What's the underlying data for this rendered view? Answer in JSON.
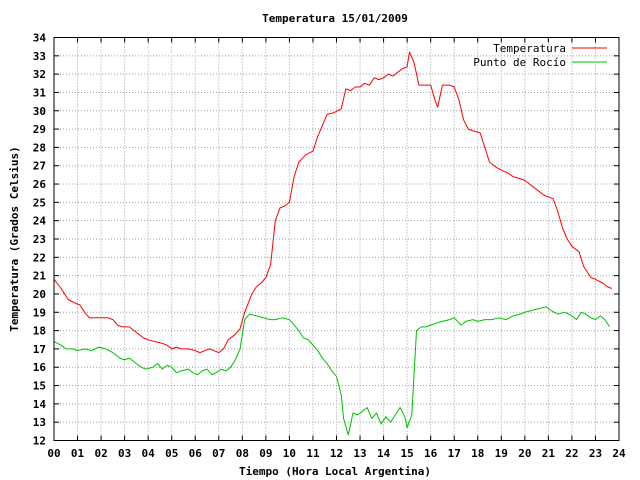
{
  "chart_data": {
    "type": "line",
    "title": "Temperatura 15/01/2009",
    "xlabel": "Tiempo (Hora Local Argentina)",
    "ylabel": "Temperatura (Grados Celsius)",
    "xlim": [
      0,
      24
    ],
    "ylim": [
      12,
      34
    ],
    "grid": true,
    "legend_position": "top-right",
    "x_ticks": [
      "00",
      "01",
      "02",
      "03",
      "04",
      "05",
      "06",
      "07",
      "08",
      "09",
      "10",
      "11",
      "12",
      "13",
      "14",
      "15",
      "16",
      "17",
      "18",
      "19",
      "20",
      "21",
      "22",
      "23",
      "24"
    ],
    "y_ticks": [
      12,
      13,
      14,
      15,
      16,
      17,
      18,
      19,
      20,
      21,
      22,
      23,
      24,
      25,
      26,
      27,
      28,
      29,
      30,
      31,
      32,
      33,
      34
    ],
    "series": [
      {
        "name": "Temperatura",
        "color": "#ff0000",
        "points": [
          [
            0.0,
            20.8
          ],
          [
            0.3,
            20.3
          ],
          [
            0.6,
            19.7
          ],
          [
            0.9,
            19.5
          ],
          [
            1.1,
            19.4
          ],
          [
            1.3,
            19.0
          ],
          [
            1.5,
            18.7
          ],
          [
            2.0,
            18.7
          ],
          [
            2.3,
            18.7
          ],
          [
            2.5,
            18.6
          ],
          [
            2.7,
            18.3
          ],
          [
            2.9,
            18.2
          ],
          [
            3.2,
            18.2
          ],
          [
            3.4,
            18.0
          ],
          [
            3.6,
            17.8
          ],
          [
            3.8,
            17.6
          ],
          [
            4.0,
            17.5
          ],
          [
            4.3,
            17.4
          ],
          [
            4.6,
            17.3
          ],
          [
            4.8,
            17.2
          ],
          [
            5.0,
            17.0
          ],
          [
            5.2,
            17.1
          ],
          [
            5.4,
            17.0
          ],
          [
            5.7,
            17.0
          ],
          [
            6.0,
            16.9
          ],
          [
            6.2,
            16.8
          ],
          [
            6.4,
            16.9
          ],
          [
            6.6,
            17.0
          ],
          [
            6.8,
            16.9
          ],
          [
            7.0,
            16.8
          ],
          [
            7.2,
            17.0
          ],
          [
            7.4,
            17.5
          ],
          [
            7.7,
            17.8
          ],
          [
            7.9,
            18.1
          ],
          [
            8.1,
            19.0
          ],
          [
            8.4,
            20.0
          ],
          [
            8.6,
            20.4
          ],
          [
            8.8,
            20.6
          ],
          [
            9.0,
            20.9
          ],
          [
            9.2,
            21.6
          ],
          [
            9.4,
            24.0
          ],
          [
            9.6,
            24.7
          ],
          [
            9.8,
            24.8
          ],
          [
            10.0,
            25.0
          ],
          [
            10.2,
            26.4
          ],
          [
            10.4,
            27.2
          ],
          [
            10.7,
            27.6
          ],
          [
            11.0,
            27.8
          ],
          [
            11.2,
            28.6
          ],
          [
            11.4,
            29.2
          ],
          [
            11.6,
            29.8
          ],
          [
            11.9,
            29.9
          ],
          [
            12.2,
            30.1
          ],
          [
            12.4,
            31.2
          ],
          [
            12.6,
            31.1
          ],
          [
            12.8,
            31.3
          ],
          [
            13.0,
            31.3
          ],
          [
            13.2,
            31.5
          ],
          [
            13.4,
            31.4
          ],
          [
            13.6,
            31.8
          ],
          [
            13.8,
            31.7
          ],
          [
            14.0,
            31.8
          ],
          [
            14.2,
            32.0
          ],
          [
            14.4,
            31.9
          ],
          [
            14.6,
            32.1
          ],
          [
            14.8,
            32.3
          ],
          [
            15.0,
            32.4
          ],
          [
            15.1,
            33.2
          ],
          [
            15.3,
            32.6
          ],
          [
            15.5,
            31.4
          ],
          [
            15.7,
            31.4
          ],
          [
            16.0,
            31.4
          ],
          [
            16.2,
            30.5
          ],
          [
            16.3,
            30.2
          ],
          [
            16.5,
            31.4
          ],
          [
            16.8,
            31.4
          ],
          [
            17.0,
            31.3
          ],
          [
            17.2,
            30.6
          ],
          [
            17.4,
            29.5
          ],
          [
            17.6,
            29.0
          ],
          [
            17.8,
            28.9
          ],
          [
            18.1,
            28.8
          ],
          [
            18.3,
            28.0
          ],
          [
            18.5,
            27.2
          ],
          [
            18.8,
            26.9
          ],
          [
            19.1,
            26.7
          ],
          [
            19.3,
            26.6
          ],
          [
            19.5,
            26.4
          ],
          [
            19.8,
            26.3
          ],
          [
            20.0,
            26.2
          ],
          [
            20.2,
            26.0
          ],
          [
            20.4,
            25.8
          ],
          [
            20.6,
            25.6
          ],
          [
            20.8,
            25.4
          ],
          [
            21.0,
            25.3
          ],
          [
            21.2,
            25.2
          ],
          [
            21.4,
            24.5
          ],
          [
            21.6,
            23.6
          ],
          [
            21.8,
            23.0
          ],
          [
            22.0,
            22.6
          ],
          [
            22.3,
            22.3
          ],
          [
            22.5,
            21.5
          ],
          [
            22.8,
            20.9
          ],
          [
            23.0,
            20.8
          ],
          [
            23.3,
            20.6
          ],
          [
            23.5,
            20.4
          ],
          [
            23.7,
            20.3
          ]
        ]
      },
      {
        "name": "Punto de Rocío",
        "color": "#00c000",
        "points": [
          [
            0.0,
            17.4
          ],
          [
            0.3,
            17.2
          ],
          [
            0.5,
            17.0
          ],
          [
            0.8,
            17.0
          ],
          [
            1.0,
            16.9
          ],
          [
            1.3,
            17.0
          ],
          [
            1.6,
            16.9
          ],
          [
            1.9,
            17.1
          ],
          [
            2.2,
            17.0
          ],
          [
            2.5,
            16.8
          ],
          [
            2.8,
            16.5
          ],
          [
            3.0,
            16.4
          ],
          [
            3.2,
            16.5
          ],
          [
            3.5,
            16.2
          ],
          [
            3.7,
            16.0
          ],
          [
            3.9,
            15.9
          ],
          [
            4.2,
            16.0
          ],
          [
            4.4,
            16.2
          ],
          [
            4.6,
            15.9
          ],
          [
            4.8,
            16.1
          ],
          [
            5.0,
            16.0
          ],
          [
            5.2,
            15.7
          ],
          [
            5.4,
            15.8
          ],
          [
            5.7,
            15.9
          ],
          [
            5.9,
            15.7
          ],
          [
            6.1,
            15.6
          ],
          [
            6.3,
            15.8
          ],
          [
            6.5,
            15.9
          ],
          [
            6.7,
            15.6
          ],
          [
            6.9,
            15.7
          ],
          [
            7.1,
            15.9
          ],
          [
            7.3,
            15.8
          ],
          [
            7.5,
            16.0
          ],
          [
            7.7,
            16.4
          ],
          [
            7.9,
            17.0
          ],
          [
            8.1,
            18.6
          ],
          [
            8.3,
            18.9
          ],
          [
            8.6,
            18.8
          ],
          [
            8.9,
            18.7
          ],
          [
            9.2,
            18.6
          ],
          [
            9.4,
            18.6
          ],
          [
            9.7,
            18.7
          ],
          [
            10.0,
            18.6
          ],
          [
            10.2,
            18.3
          ],
          [
            10.4,
            18.0
          ],
          [
            10.6,
            17.6
          ],
          [
            10.8,
            17.5
          ],
          [
            11.0,
            17.2
          ],
          [
            11.2,
            16.9
          ],
          [
            11.4,
            16.5
          ],
          [
            11.6,
            16.2
          ],
          [
            11.8,
            15.8
          ],
          [
            12.0,
            15.5
          ],
          [
            12.2,
            14.5
          ],
          [
            12.3,
            13.2
          ],
          [
            12.5,
            12.3
          ],
          [
            12.7,
            13.5
          ],
          [
            12.9,
            13.4
          ],
          [
            13.1,
            13.6
          ],
          [
            13.3,
            13.8
          ],
          [
            13.5,
            13.2
          ],
          [
            13.7,
            13.5
          ],
          [
            13.9,
            12.9
          ],
          [
            14.1,
            13.3
          ],
          [
            14.3,
            13.0
          ],
          [
            14.5,
            13.4
          ],
          [
            14.7,
            13.8
          ],
          [
            14.9,
            13.3
          ],
          [
            15.0,
            12.7
          ],
          [
            15.2,
            13.4
          ],
          [
            15.4,
            18.0
          ],
          [
            15.6,
            18.2
          ],
          [
            15.8,
            18.2
          ],
          [
            16.0,
            18.3
          ],
          [
            16.2,
            18.4
          ],
          [
            16.5,
            18.5
          ],
          [
            16.8,
            18.6
          ],
          [
            17.0,
            18.7
          ],
          [
            17.3,
            18.3
          ],
          [
            17.5,
            18.5
          ],
          [
            17.8,
            18.6
          ],
          [
            18.0,
            18.5
          ],
          [
            18.3,
            18.6
          ],
          [
            18.6,
            18.6
          ],
          [
            18.9,
            18.7
          ],
          [
            19.2,
            18.6
          ],
          [
            19.5,
            18.8
          ],
          [
            19.8,
            18.9
          ],
          [
            20.0,
            19.0
          ],
          [
            20.3,
            19.1
          ],
          [
            20.6,
            19.2
          ],
          [
            20.9,
            19.3
          ],
          [
            21.1,
            19.1
          ],
          [
            21.4,
            18.9
          ],
          [
            21.7,
            19.0
          ],
          [
            22.0,
            18.8
          ],
          [
            22.2,
            18.6
          ],
          [
            22.4,
            19.0
          ],
          [
            22.6,
            18.9
          ],
          [
            22.8,
            18.7
          ],
          [
            23.0,
            18.6
          ],
          [
            23.2,
            18.8
          ],
          [
            23.4,
            18.6
          ],
          [
            23.6,
            18.2
          ]
        ]
      }
    ]
  }
}
